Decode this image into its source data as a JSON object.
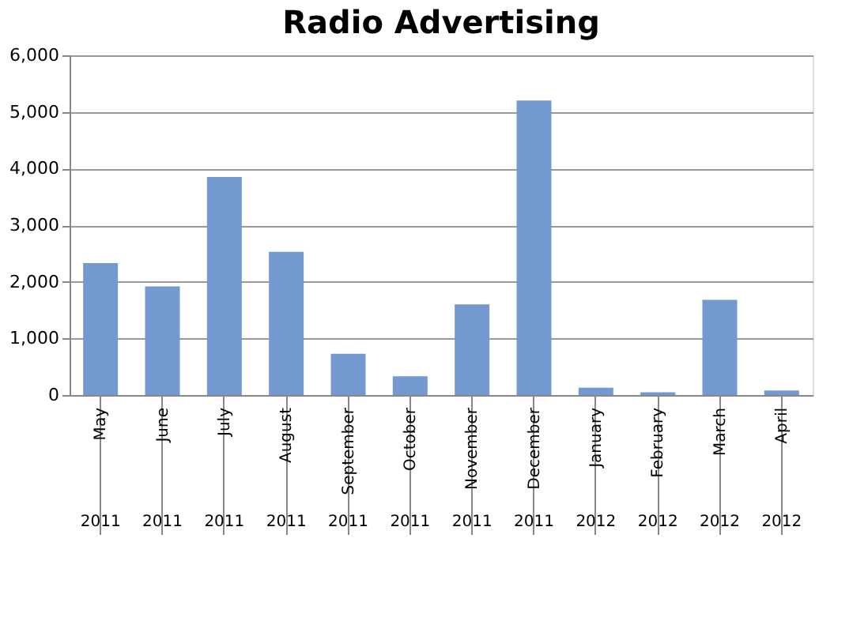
{
  "chart_data": {
    "type": "bar",
    "title": "Radio Advertising",
    "categories": [
      "May",
      "June",
      "July",
      "August",
      "September",
      "October",
      "November",
      "December",
      "January",
      "February",
      "March",
      "April"
    ],
    "values": [
      2330,
      1920,
      3850,
      2530,
      730,
      330,
      1600,
      5200,
      130,
      50,
      1680,
      80
    ],
    "color": "#7399d0",
    "ylim": [
      0,
      6000
    ],
    "yticks": [
      {
        "value": 0,
        "label": "0"
      },
      {
        "value": 1000,
        "label": "1,000"
      },
      {
        "value": 2000,
        "label": "2,000"
      },
      {
        "value": 3000,
        "label": "3,000"
      },
      {
        "value": 4000,
        "label": "4,000"
      },
      {
        "value": 5000,
        "label": "5,000"
      },
      {
        "value": 6000,
        "label": "6,000"
      }
    ],
    "grid": "y",
    "annotations": [
      "2011",
      "2011",
      "2011",
      "2011",
      "2011",
      "2011",
      "2011",
      "2011",
      "2012",
      "2012",
      "2012",
      "2012"
    ]
  }
}
